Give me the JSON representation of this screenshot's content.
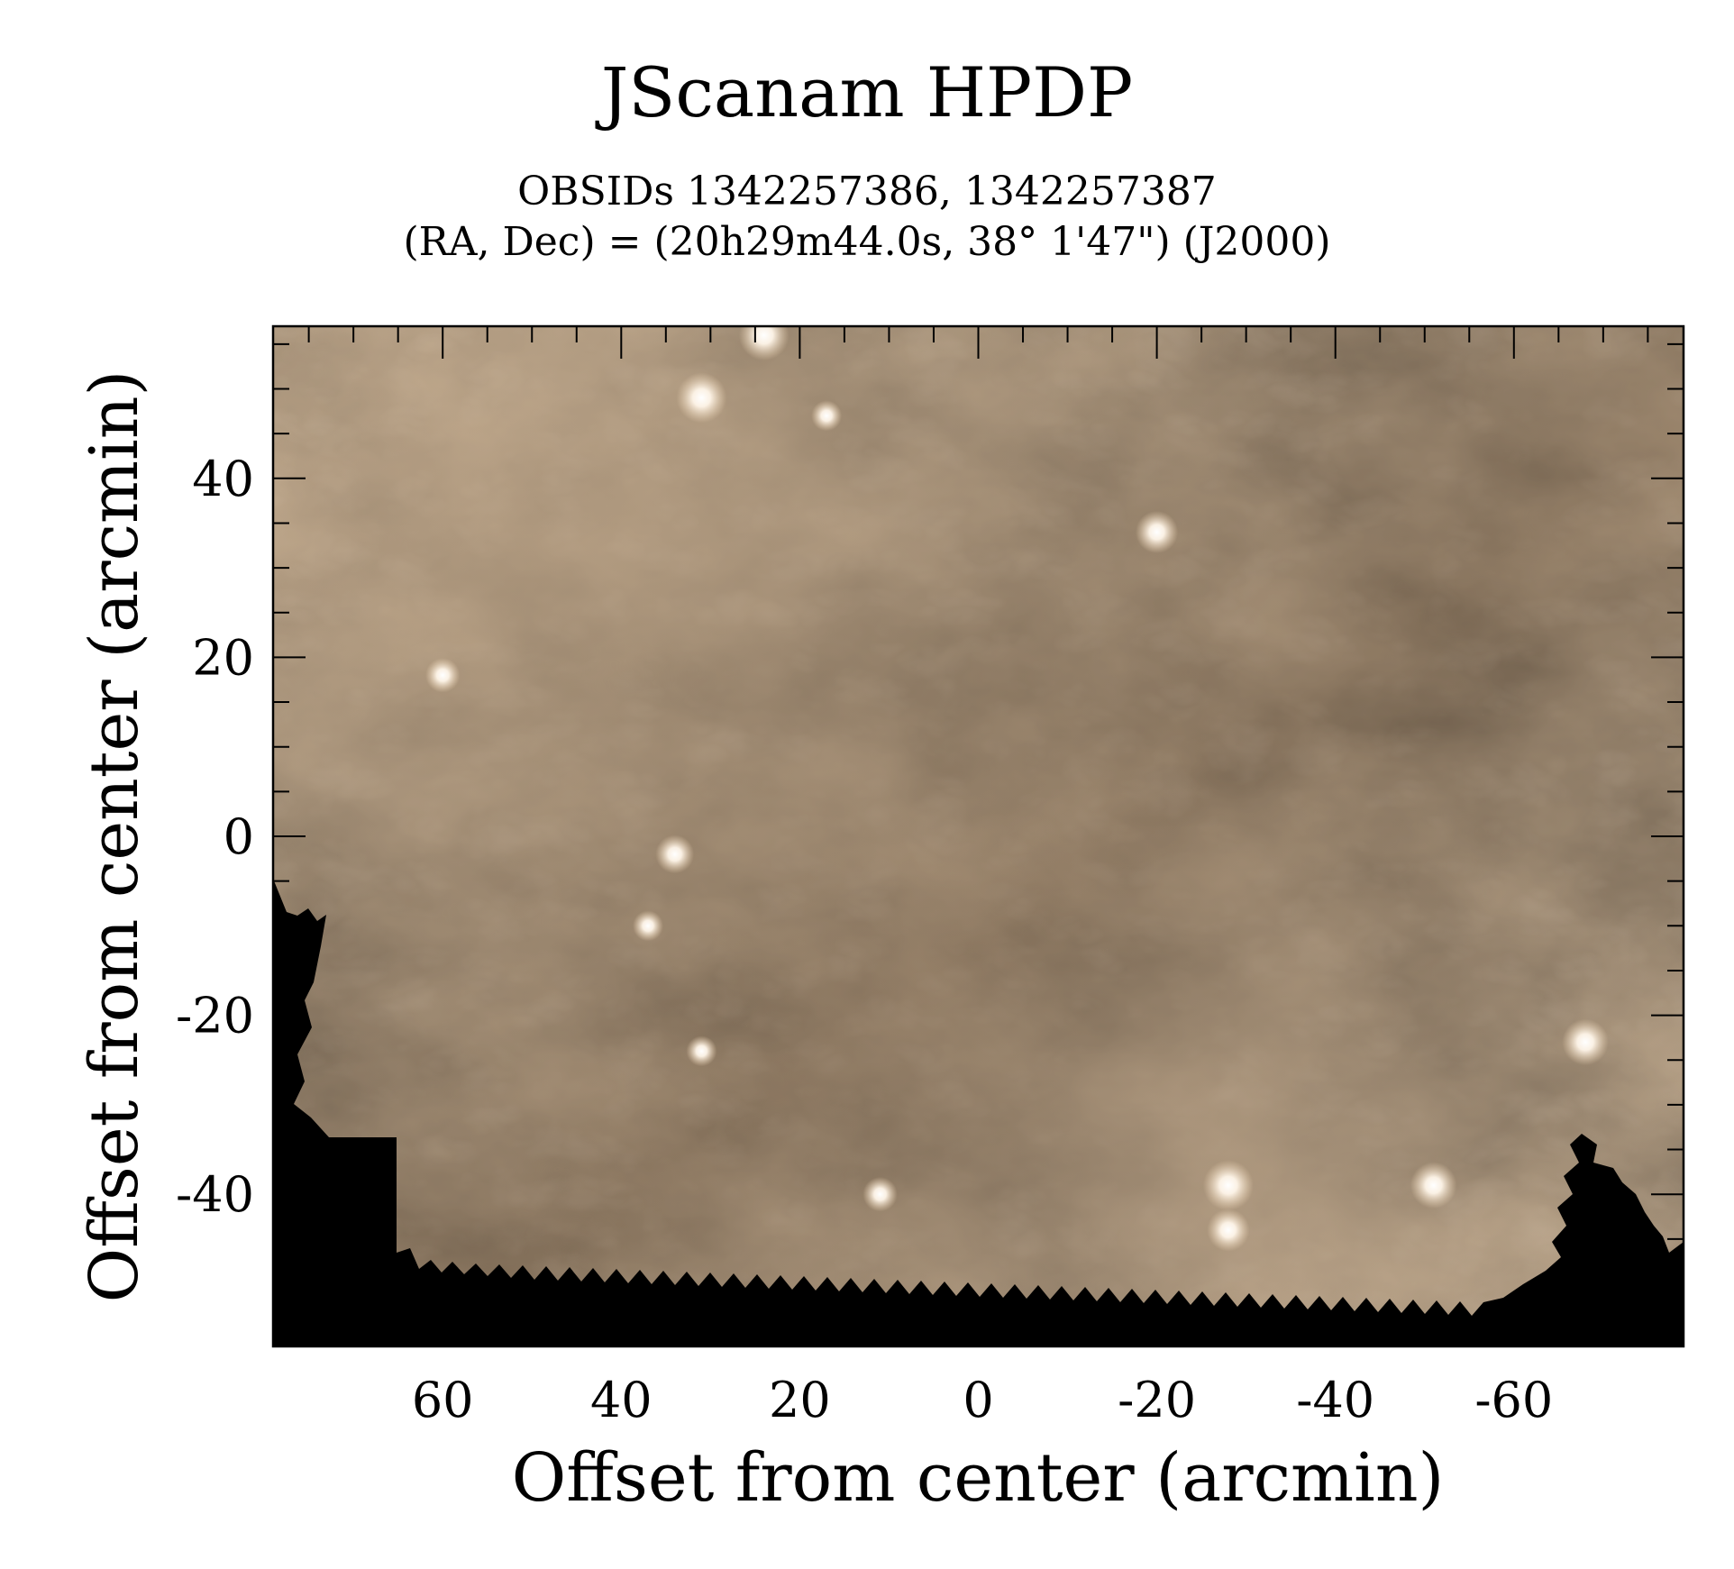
{
  "chart_data": {
    "type": "heatmap",
    "title": "JScanam HPDP",
    "subtitle_lines": [
      "OBSIDs 1342257386, 1342257387",
      "(RA, Dec) = (20h29m44.0s, 38° 1'47\") (J2000)"
    ],
    "xlabel": "Offset from center (arcmin)",
    "ylabel": "Offset from center (arcmin)",
    "xlim": [
      79,
      -79
    ],
    "ylim": [
      -57,
      57
    ],
    "x_ticks": [
      60,
      40,
      20,
      0,
      -20,
      -40,
      -60
    ],
    "y_ticks": [
      40,
      20,
      0,
      -20,
      -40
    ],
    "x_tick_labels": [
      "60",
      "40",
      "20",
      "0",
      "-20",
      "-40",
      "-60"
    ],
    "y_tick_labels": [
      "40",
      "20",
      "0",
      "-20",
      "-40"
    ],
    "x_minor_step": 5,
    "y_minor_step": 5,
    "grid": false,
    "colors": {
      "nebula_base": "#7d6346",
      "nebula_light": "#c9ab8a",
      "nebula_dark": "#5f4630",
      "background": "#000000"
    },
    "bright_sources": [
      {
        "x": 31,
        "y": 49,
        "intensity": 1.0
      },
      {
        "x": 24,
        "y": 56,
        "intensity": 1.0
      },
      {
        "x": -20,
        "y": 34,
        "intensity": 0.8
      },
      {
        "x": 34,
        "y": -2,
        "intensity": 0.7
      },
      {
        "x": -28,
        "y": -39,
        "intensity": 1.0
      },
      {
        "x": -28,
        "y": -44,
        "intensity": 0.8
      },
      {
        "x": -51,
        "y": -39,
        "intensity": 0.9
      },
      {
        "x": -68,
        "y": -23,
        "intensity": 0.9
      },
      {
        "x": 60,
        "y": 18,
        "intensity": 0.6
      },
      {
        "x": 37,
        "y": -10,
        "intensity": 0.5
      },
      {
        "x": 11,
        "y": -40,
        "intensity": 0.6
      },
      {
        "x": 31,
        "y": -24,
        "intensity": 0.5
      },
      {
        "x": 17,
        "y": 47,
        "intensity": 0.5
      }
    ]
  }
}
